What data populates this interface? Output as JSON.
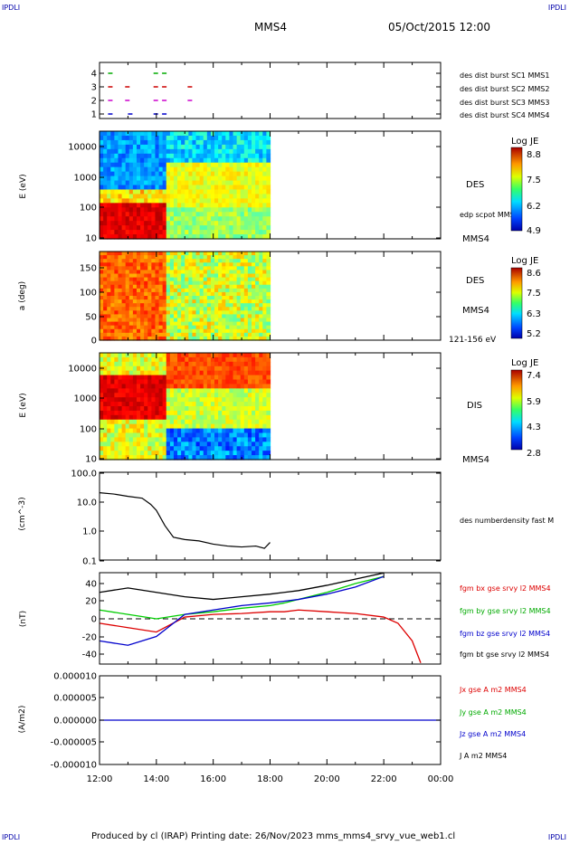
{
  "corners": {
    "tl": "IPDLI",
    "tr": "IPDLI",
    "bl": "IPDLI",
    "br": "IPDLI"
  },
  "header": {
    "spacecraft": "MMS4",
    "datetime": "05/Oct/2015 12:00"
  },
  "footer": {
    "text": "Produced by cl (IRAP)   Printing date: 26/Nov/2023   mms_mms4_srvy_vue_web1.cl"
  },
  "x_axis": {
    "ticks": [
      "12:00",
      "14:00",
      "16:00",
      "18:00",
      "20:00",
      "22:00",
      "00:00"
    ]
  },
  "colors": {
    "des1": "#0000cc",
    "des2": "#cc00cc",
    "des3": "#cc0000",
    "des4": "#00aa00",
    "bx": "#dd0000",
    "by": "#00cc00",
    "bz": "#0000cc",
    "bt": "#000000"
  },
  "chart_data": [
    {
      "type": "scatter",
      "name": "burst",
      "yticks": [
        "1",
        "2",
        "3",
        "4"
      ],
      "legend": [
        "des dist burst SC1 MMS1",
        "des dist burst SC2 MMS2",
        "des dist burst SC3 MMS3",
        "des dist burst SC4 MMS4"
      ],
      "series": [
        {
          "level": 1,
          "x_hours": [
            12.3,
            13.0,
            13.9,
            14.2
          ]
        },
        {
          "level": 2,
          "x_hours": [
            12.3,
            12.9,
            13.9,
            14.2,
            15.1
          ]
        },
        {
          "level": 3,
          "x_hours": [
            12.3,
            12.9,
            13.9,
            14.2,
            15.1
          ]
        },
        {
          "level": 4,
          "x_hours": [
            12.3,
            13.9,
            14.2
          ]
        }
      ]
    },
    {
      "type": "heatmap",
      "name": "des_energy",
      "ylabel": "E (eV)",
      "yticks": [
        "10",
        "100",
        "1000",
        "10000"
      ],
      "side_label": "DES",
      "side_sub": "MMS4",
      "annotation": "edp scpot MMS4",
      "colorbar": {
        "title": "Log JE",
        "ticks": [
          "8.8",
          "7.5",
          "6.2",
          "4.9"
        ]
      }
    },
    {
      "type": "heatmap",
      "name": "des_pitch",
      "ylabel": "a (deg)",
      "yticks": [
        "0",
        "50",
        "100",
        "150"
      ],
      "side_label": "DES",
      "side_sub": "MMS4",
      "annotation": "121-156 eV",
      "colorbar": {
        "title": "Log JE",
        "ticks": [
          "8.6",
          "7.5",
          "6.3",
          "5.2"
        ]
      }
    },
    {
      "type": "heatmap",
      "name": "dis_energy",
      "ylabel": "E (eV)",
      "yticks": [
        "10",
        "100",
        "1000",
        "10000"
      ],
      "side_label": "DIS",
      "side_sub": "MMS4",
      "colorbar": {
        "title": "Log JE",
        "ticks": [
          "7.4",
          "5.9",
          "4.3",
          "2.8"
        ]
      }
    },
    {
      "type": "line",
      "name": "density",
      "ylabel": "(cm^-3)",
      "yticks": [
        "0.1",
        "1.0",
        "10.0",
        "100.0"
      ],
      "legend": [
        "des numberdensity fast M"
      ],
      "x_hours": [
        12.0,
        12.5,
        13.0,
        13.5,
        13.8,
        14.0,
        14.3,
        14.6,
        15.0,
        15.5,
        16.0,
        16.5,
        17.0,
        17.5,
        17.8,
        18.0
      ],
      "values": [
        20,
        18,
        15,
        13,
        8,
        5,
        1.5,
        0.6,
        0.5,
        0.45,
        0.35,
        0.3,
        0.28,
        0.3,
        0.25,
        0.4
      ]
    },
    {
      "type": "line",
      "name": "magnetic_field",
      "ylabel": "(nT)",
      "yticks": [
        "-40",
        "-20",
        "0",
        "20",
        "40"
      ],
      "legend": [
        "fgm bx gse srvy l2 MMS4",
        "fgm by gse srvy l2 MMS4",
        "fgm bz gse srvy l2 MMS4",
        "fgm bt gse srvy l2 MMS4"
      ],
      "x_hours": [
        12,
        13,
        14,
        15,
        16,
        17,
        18,
        18.5,
        19,
        20,
        21,
        22,
        22.5,
        23,
        23.3
      ],
      "series": [
        {
          "name": "bx",
          "values": [
            -5,
            -10,
            -15,
            2,
            5,
            6,
            8,
            8,
            10,
            8,
            6,
            2,
            -5,
            -25,
            -50
          ]
        },
        {
          "name": "by",
          "values": [
            10,
            5,
            0,
            5,
            8,
            12,
            15,
            18,
            22,
            30,
            40,
            48,
            null,
            null,
            null
          ]
        },
        {
          "name": "bz",
          "values": [
            -25,
            -30,
            -20,
            5,
            10,
            15,
            18,
            20,
            22,
            28,
            36,
            48,
            null,
            null,
            null
          ]
        },
        {
          "name": "bt",
          "values": [
            30,
            35,
            30,
            25,
            22,
            25,
            28,
            30,
            32,
            38,
            45,
            52,
            null,
            null,
            null
          ]
        }
      ]
    },
    {
      "type": "line",
      "name": "current_density",
      "ylabel": "(A/m2)",
      "yticks": [
        "-0.000010",
        "-0.000005",
        "0.000000",
        "0.000005",
        "0.000010"
      ],
      "legend": [
        "Jx gse A m2 MMS4",
        "Jy gse A m2 MMS4",
        "Jz gse A m2 MMS4",
        "J A m2 MMS4"
      ],
      "x_hours": [
        12,
        24
      ],
      "values": [
        0,
        0
      ]
    }
  ]
}
